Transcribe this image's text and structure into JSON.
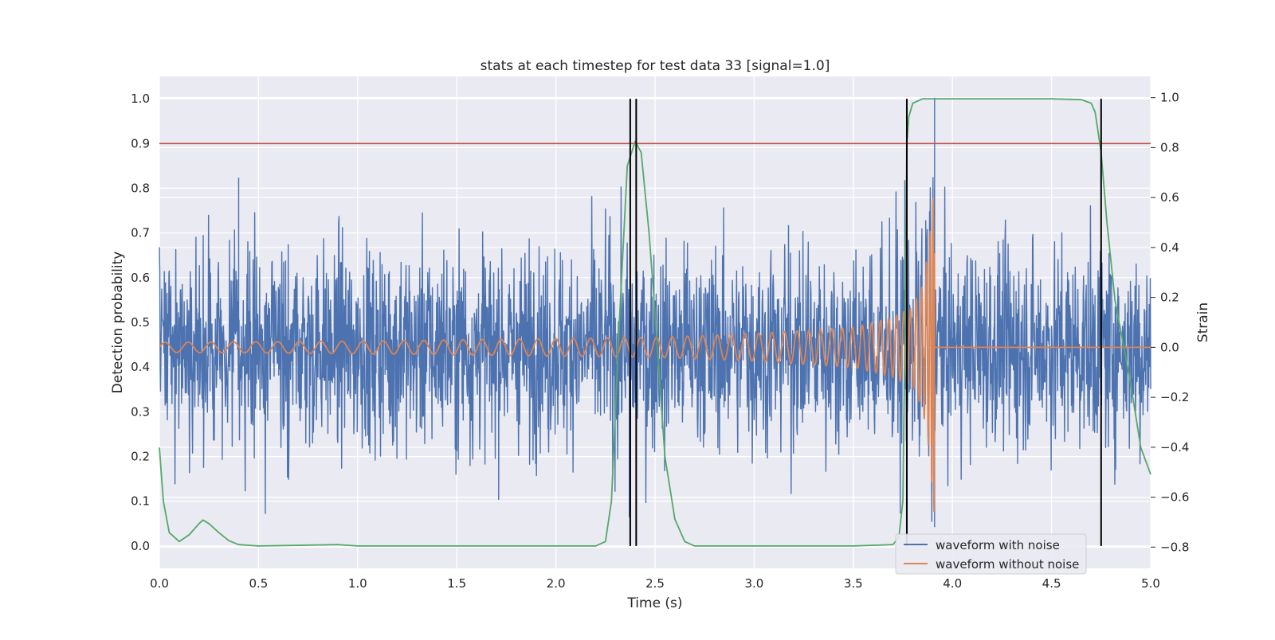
{
  "chart_data": {
    "type": "line",
    "title": "stats at each timestep for test data 33 [signal=1.0]",
    "xlabel": "Time (s)",
    "ylabel": "Detection probability",
    "y2label": "Strain",
    "xlim": [
      0.0,
      5.0
    ],
    "ylim": [
      -0.05,
      1.05
    ],
    "y2lim": [
      -0.885,
      1.085
    ],
    "xticks": [
      0.0,
      0.5,
      1.0,
      1.5,
      2.0,
      2.5,
      3.0,
      3.5,
      4.0,
      4.5,
      5.0
    ],
    "xtick_labels": [
      "0.0",
      "0.5",
      "1.0",
      "1.5",
      "2.0",
      "2.5",
      "3.0",
      "3.5",
      "4.0",
      "4.5",
      "5.0"
    ],
    "yticks": [
      0.0,
      0.1,
      0.2,
      0.3,
      0.4,
      0.5,
      0.6,
      0.7,
      0.8,
      0.9,
      1.0
    ],
    "ytick_labels": [
      "0.0",
      "0.1",
      "0.2",
      "0.3",
      "0.4",
      "0.5",
      "0.6",
      "0.7",
      "0.8",
      "0.9",
      "1.0"
    ],
    "y2ticks": [
      -0.8,
      -0.6,
      -0.4,
      -0.2,
      0.0,
      0.2,
      0.4,
      0.6,
      0.8,
      1.0
    ],
    "y2tick_labels": [
      "−0.8",
      "−0.6",
      "−0.4",
      "−0.2",
      "0.0",
      "0.2",
      "0.4",
      "0.6",
      "0.8",
      "1.0"
    ],
    "grid": true,
    "legend_position": "bottom-right",
    "colors": {
      "background": "#eaeaf2",
      "grid": "#ffffff",
      "noise": "#4c72b0",
      "clean": "#dd8452",
      "probability": "#55a868",
      "threshold": "#c44e52",
      "marker": "#000000"
    },
    "threshold": 0.9,
    "vertical_markers": [
      2.375,
      2.405,
      3.77,
      4.75
    ],
    "series": [
      {
        "name": "waveform with noise",
        "axis": "right",
        "description": "noisy strain, approx. zero-mean random noise with std ~0.2, amplitude up to ~1.0",
        "noise_std": 0.2,
        "peaks": [
          [
            0.4,
            0.68
          ],
          [
            3.91,
            1.0
          ],
          [
            3.76,
            0.67
          ],
          [
            2.37,
            -0.68
          ],
          [
            3.91,
            -0.72
          ]
        ]
      },
      {
        "name": "waveform without noise",
        "axis": "right",
        "description": "chirp signal growing in amplitude and frequency, merging at ~3.91 s, then zero",
        "merger_time": 3.91,
        "x": [
          0.0,
          1.0,
          2.0,
          2.5,
          3.0,
          3.5,
          3.7,
          3.8,
          3.85,
          3.88,
          3.9,
          3.91,
          3.92,
          5.0
        ],
        "envelope": [
          0.02,
          0.025,
          0.035,
          0.04,
          0.055,
          0.08,
          0.12,
          0.16,
          0.25,
          0.4,
          0.58,
          0.72,
          0.0,
          0.0
        ]
      },
      {
        "name": "detection probability",
        "axis": "left",
        "x": [
          0.0,
          0.02,
          0.05,
          0.1,
          0.15,
          0.2,
          0.22,
          0.25,
          0.3,
          0.35,
          0.4,
          0.5,
          0.9,
          1.0,
          2.2,
          2.25,
          2.28,
          2.32,
          2.36,
          2.4,
          2.43,
          2.47,
          2.5,
          2.55,
          2.6,
          2.65,
          2.7,
          3.5,
          3.7,
          3.73,
          3.75,
          3.76,
          3.77,
          3.78,
          3.8,
          3.85,
          3.9,
          4.0,
          4.5,
          4.65,
          4.7,
          4.72,
          4.75,
          4.78,
          4.82,
          4.9,
          4.95,
          5.0
        ],
        "y": [
          0.22,
          0.1,
          0.03,
          0.01,
          0.025,
          0.05,
          0.058,
          0.05,
          0.03,
          0.012,
          0.003,
          0.0,
          0.003,
          0.0,
          0.0,
          0.01,
          0.1,
          0.5,
          0.85,
          0.905,
          0.88,
          0.7,
          0.52,
          0.2,
          0.06,
          0.01,
          0.0,
          0.0,
          0.003,
          0.02,
          0.1,
          0.45,
          0.9,
          0.96,
          0.99,
          1.0,
          1.0,
          1.0,
          1.0,
          0.998,
          0.99,
          0.97,
          0.88,
          0.72,
          0.55,
          0.36,
          0.22,
          0.16
        ]
      }
    ]
  }
}
